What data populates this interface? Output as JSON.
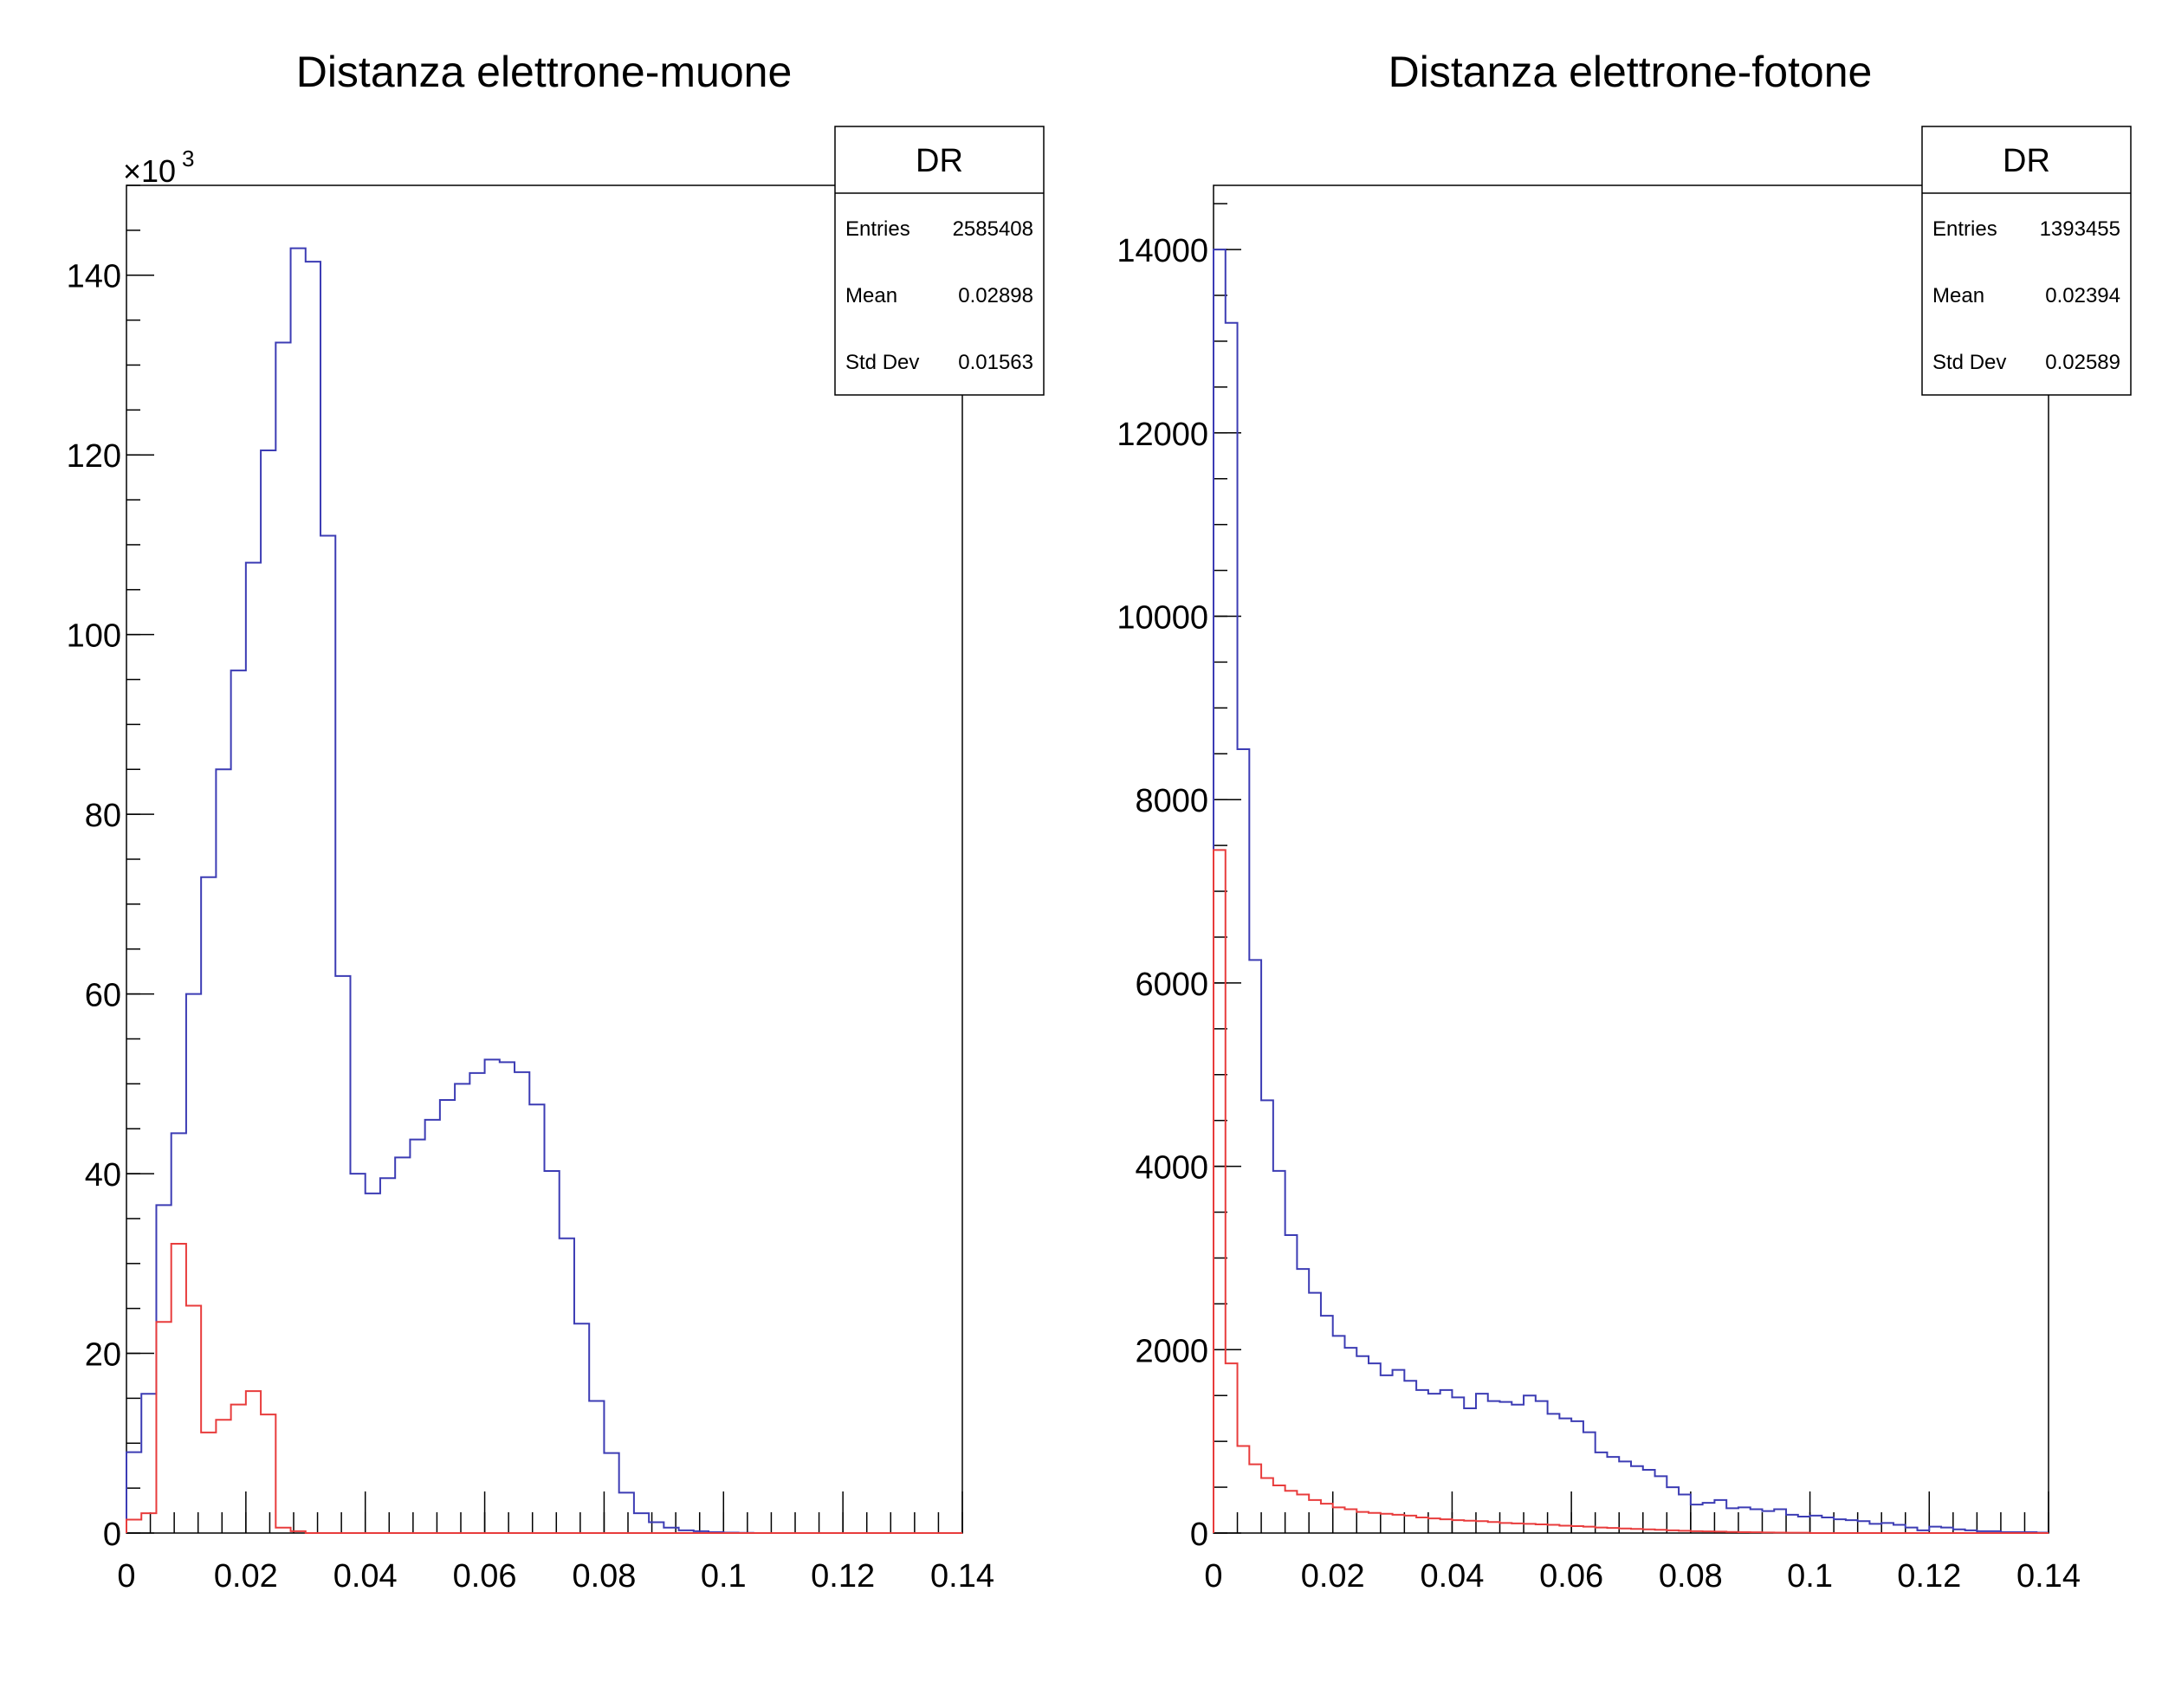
{
  "colors": {
    "series_blue": "#3c3cb4",
    "series_red": "#e83c3c",
    "axis": "#000000",
    "background": "#ffffff"
  },
  "chart_data": [
    {
      "type": "histogram",
      "title": "Distanza elettrone-muone",
      "y_multiplier_label": "×10",
      "y_multiplier_exponent": "3",
      "xlim": [
        0,
        0.14
      ],
      "ylim": [
        0,
        150
      ],
      "x_ticks": [
        0,
        0.02,
        0.04,
        0.06,
        0.08,
        0.1,
        0.12,
        0.14
      ],
      "x_tick_labels": [
        "0",
        "0.02",
        "0.04",
        "0.06",
        "0.08",
        "0.1",
        "0.12",
        "0.14"
      ],
      "y_ticks": [
        0,
        20,
        40,
        60,
        80,
        100,
        120,
        140
      ],
      "y_tick_labels": [
        "0",
        "20",
        "40",
        "60",
        "80",
        "100",
        "120",
        "140"
      ],
      "bin_width": 0.0025,
      "stats": {
        "name": "DR",
        "rows": [
          {
            "label": "Entries",
            "value": "2585408"
          },
          {
            "label": "Mean",
            "value": "0.02898"
          },
          {
            "label": "Std Dev",
            "value": "0.01563"
          }
        ]
      },
      "series": [
        {
          "color": "#3c3cb4",
          "values": [
            9,
            15.5,
            36.5,
            44.5,
            60,
            73,
            85,
            96,
            108,
            120.5,
            132.5,
            143,
            141.5,
            111,
            62,
            40,
            37.8,
            39.5,
            41.8,
            43.8,
            46,
            48.2,
            50,
            51.2,
            52.7,
            52.4,
            51.3,
            47.7,
            40.3,
            32.8,
            23.3,
            14.7,
            8.9,
            4.5,
            2.2,
            1.2,
            0.6,
            0.3,
            0.2,
            0.1,
            0.05,
            0.03,
            0,
            0,
            0,
            0,
            0,
            0,
            0,
            0,
            0,
            0,
            0,
            0,
            0,
            0
          ]
        },
        {
          "color": "#e83c3c",
          "values": [
            1.5,
            2.2,
            23.5,
            32.2,
            25.3,
            11.2,
            12.6,
            14.3,
            15.8,
            13.2,
            0.6,
            0.2,
            0,
            0,
            0,
            0,
            0,
            0,
            0,
            0,
            0,
            0,
            0,
            0,
            0,
            0,
            0,
            0,
            0,
            0,
            0,
            0,
            0,
            0,
            0,
            0,
            0,
            0,
            0,
            0,
            0,
            0,
            0,
            0,
            0,
            0,
            0,
            0,
            0,
            0,
            0,
            0,
            0,
            0,
            0,
            0
          ]
        }
      ]
    },
    {
      "type": "histogram",
      "title": "Distanza elettrone-fotone",
      "y_multiplier_label": "",
      "y_multiplier_exponent": "",
      "xlim": [
        0,
        0.14
      ],
      "ylim": [
        0,
        14700
      ],
      "x_ticks": [
        0,
        0.02,
        0.04,
        0.06,
        0.08,
        0.1,
        0.12,
        0.14
      ],
      "x_tick_labels": [
        "0",
        "0.02",
        "0.04",
        "0.06",
        "0.08",
        "0.1",
        "0.12",
        "0.14"
      ],
      "y_ticks": [
        0,
        2000,
        4000,
        6000,
        8000,
        10000,
        12000,
        14000
      ],
      "y_tick_labels": [
        "0",
        "2000",
        "4000",
        "6000",
        "8000",
        "10000",
        "12000",
        "14000"
      ],
      "bin_width": 0.002,
      "stats": {
        "name": "DR",
        "rows": [
          {
            "label": "Entries",
            "value": "1393455"
          },
          {
            "label": "Mean",
            "value": "0.02394"
          },
          {
            "label": "Std Dev",
            "value": "0.02589"
          }
        ]
      },
      "series": [
        {
          "color": "#3c3cb4",
          "values": [
            14000,
            13200,
            8550,
            6250,
            4720,
            3950,
            3250,
            2880,
            2620,
            2370,
            2150,
            2020,
            1930,
            1850,
            1720,
            1780,
            1660,
            1560,
            1520,
            1560,
            1480,
            1360,
            1520,
            1440,
            1430,
            1400,
            1500,
            1440,
            1300,
            1250,
            1220,
            1100,
            880,
            830,
            780,
            730,
            690,
            620,
            500,
            420,
            310,
            330,
            360,
            270,
            280,
            260,
            240,
            260,
            200,
            180,
            190,
            170,
            150,
            140,
            130,
            100,
            110,
            90,
            60,
            30,
            70,
            60,
            40,
            30,
            20,
            20,
            10,
            10,
            10,
            5
          ]
        },
        {
          "color": "#e83c3c",
          "values": [
            7450,
            1850,
            950,
            750,
            600,
            520,
            460,
            420,
            360,
            320,
            280,
            260,
            230,
            220,
            210,
            200,
            190,
            170,
            160,
            150,
            140,
            135,
            130,
            120,
            110,
            105,
            100,
            95,
            90,
            80,
            75,
            70,
            60,
            55,
            50,
            45,
            40,
            35,
            30,
            25,
            20,
            18,
            15,
            12,
            10,
            8,
            6,
            5,
            4,
            3,
            0,
            0,
            0,
            0,
            0,
            0,
            0,
            0,
            0,
            0,
            0,
            0,
            0,
            0,
            0,
            0,
            0,
            0,
            0,
            0
          ]
        }
      ]
    }
  ]
}
